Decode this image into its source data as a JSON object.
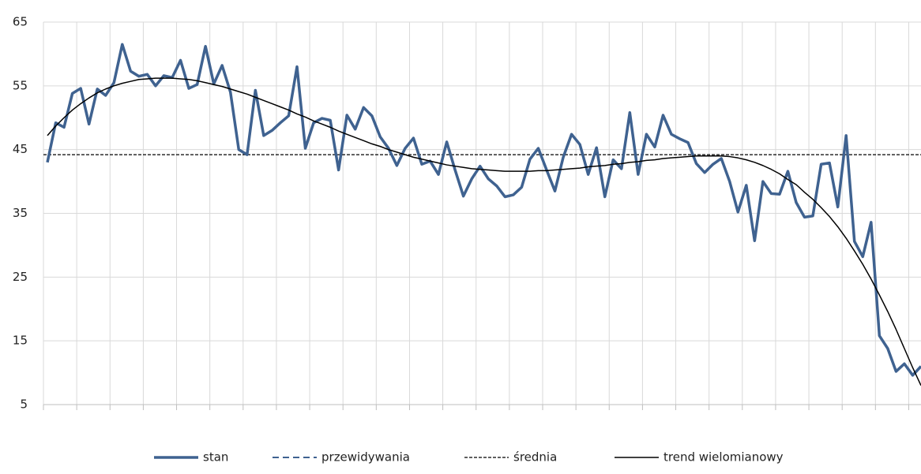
{
  "chart_data": {
    "type": "line",
    "ylim": [
      5,
      65
    ],
    "yticks": [
      5,
      15,
      25,
      35,
      45,
      55,
      65
    ],
    "grid": true,
    "legend": "bottom",
    "series": [
      {
        "name": "stan",
        "color": "#3f6290",
        "dash": "solid",
        "values": [
          43,
          49.2,
          48.5,
          53.8,
          54.6,
          49,
          54.5,
          53.5,
          55.5,
          61.5,
          57.3,
          56.5,
          56.8,
          55,
          56.6,
          56.3,
          59,
          54.6,
          55.2,
          61.2,
          55.3,
          58.2,
          54,
          45,
          44.2,
          54.3,
          47.2,
          48,
          49.2,
          50.3,
          58,
          45.2,
          49.2,
          49.9,
          49.6,
          41.8,
          50.4,
          48.2,
          51.6,
          50.3,
          47,
          45.2,
          42.5,
          45.2,
          46.8,
          42.7,
          43.2,
          41.1,
          46.2,
          41.8,
          37.7,
          40.4,
          42.4,
          40.4,
          39.3,
          37.6,
          37.9,
          39.1,
          43.5,
          45.2,
          41.8,
          38.5,
          43.8,
          47.4,
          45.8,
          41.1,
          45.3,
          37.6,
          43.4,
          42,
          50.8,
          41.1,
          47.4,
          45.4,
          50.4,
          47.4,
          46.7,
          46.1,
          42.8,
          41.4,
          42.7,
          43.6,
          40,
          35.2,
          39.4,
          30.7,
          40,
          38.1,
          38,
          41.6,
          36.7,
          34.4,
          34.6,
          42.7,
          42.9,
          36,
          47.2,
          30.6,
          28.2,
          33.6,
          15.8,
          13.8,
          10.2,
          11.4,
          9.6,
          11
        ]
      },
      {
        "name": "przewidywania",
        "color": "#3f6290",
        "dash": "dashed",
        "values": []
      },
      {
        "name": "średnia",
        "color": "#000000",
        "dash": "dotted",
        "value": 44.2
      },
      {
        "name": "trend wielomianowy",
        "color": "#000000",
        "dash": "thin",
        "values": [
          47.2,
          48.7,
          50,
          51.2,
          52.2,
          53.1,
          53.9,
          54.5,
          55,
          55.4,
          55.7,
          56,
          56.1,
          56.2,
          56.2,
          56.2,
          56.1,
          56,
          55.8,
          55.5,
          55.2,
          54.9,
          54.5,
          54.1,
          53.7,
          53.2,
          52.7,
          52.2,
          51.7,
          51.2,
          50.6,
          50.1,
          49.5,
          49,
          48.5,
          47.9,
          47.4,
          46.9,
          46.4,
          45.9,
          45.5,
          45,
          44.6,
          44.2,
          43.8,
          43.5,
          43.2,
          42.9,
          42.6,
          42.4,
          42.2,
          42,
          41.9,
          41.8,
          41.7,
          41.6,
          41.6,
          41.6,
          41.6,
          41.7,
          41.7,
          41.8,
          41.9,
          42,
          42.1,
          42.3,
          42.4,
          42.5,
          42.7,
          42.8,
          43,
          43.1,
          43.3,
          43.4,
          43.6,
          43.7,
          43.8,
          43.9,
          44,
          44,
          44,
          44,
          43.9,
          43.7,
          43.4,
          43,
          42.5,
          41.9,
          41.2,
          40.3,
          39.5,
          38.3,
          37.2,
          35.9,
          34.5,
          32.9,
          31.1,
          29.1,
          27,
          24.7,
          22.2,
          19.6,
          16.8,
          13.8,
          10.8,
          8
        ]
      }
    ]
  }
}
